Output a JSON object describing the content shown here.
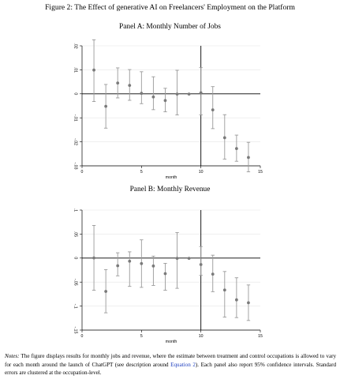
{
  "figure": {
    "title": "Figure 2: The Effect of generative AI on Freelancers' Employment on the Platform"
  },
  "notes": {
    "label": "Notes:",
    "text_before_link": " The figure displays results for monthly jobs and revenue, where the estimate between treatment and control occupations is allowed to vary for each month around the launch of ChatGPT (see description around ",
    "link_text": "Equation 2",
    "text_after_link": "). Each panel also report 95% confidence intervals. Standard errors are clustered at the occupation-level."
  },
  "style": {
    "marker_color": "#7a7a7a",
    "ci_color": "#9a9a9a",
    "grid_color": "#e6e6e6",
    "line_color": "#000000",
    "link_color": "#1f3fbf"
  },
  "chart_data": [
    {
      "type": "scatter",
      "subtype": "event-study with 95% CI",
      "title": "Panel A: Monthly Number of Jobs",
      "xlabel": "month",
      "ylabel": "",
      "xlim": [
        0,
        15
      ],
      "ylim": [
        -0.03,
        0.02
      ],
      "xticks": [
        0,
        5,
        10,
        15
      ],
      "xtick_labels": [
        "0",
        "5",
        "10",
        "15"
      ],
      "yticks": [
        -0.03,
        -0.02,
        -0.01,
        0,
        0.01,
        0.02
      ],
      "ytick_labels": [
        "-.03",
        "-.02",
        "-.01",
        "0",
        ".01",
        ".02"
      ],
      "grid": true,
      "reference_lines": {
        "horizontal_y": 0,
        "vertical_x": 10
      },
      "points": [
        {
          "x": 1,
          "y": 0.0099,
          "lo": -0.0032,
          "hi": 0.0225
        },
        {
          "x": 2,
          "y": -0.0052,
          "lo": -0.0143,
          "hi": 0.0039
        },
        {
          "x": 3,
          "y": 0.0045,
          "lo": -0.0017,
          "hi": 0.0108
        },
        {
          "x": 4,
          "y": 0.0035,
          "lo": -0.0027,
          "hi": 0.0101
        },
        {
          "x": 5,
          "y": 0.0002,
          "lo": -0.0041,
          "hi": 0.0092
        },
        {
          "x": 6,
          "y": -0.0013,
          "lo": -0.0066,
          "hi": 0.0071
        },
        {
          "x": 7,
          "y": -0.0028,
          "lo": -0.0075,
          "hi": 0.0023
        },
        {
          "x": 8,
          "y": -0.0001,
          "lo": -0.0088,
          "hi": 0.0098
        },
        {
          "x": 9,
          "y": -0.0001,
          "lo": null,
          "hi": null
        },
        {
          "x": 10,
          "y": 0.0004,
          "lo": -0.0088,
          "hi": 0.0109
        },
        {
          "x": 11,
          "y": -0.0067,
          "lo": -0.0145,
          "hi": 0.003
        },
        {
          "x": 12,
          "y": -0.0183,
          "lo": -0.0272,
          "hi": -0.0087
        },
        {
          "x": 13,
          "y": -0.0228,
          "lo": -0.0281,
          "hi": -0.0172
        },
        {
          "x": 14,
          "y": -0.0265,
          "lo": -0.0325,
          "hi": -0.0202
        }
      ]
    },
    {
      "type": "scatter",
      "subtype": "event-study with 95% CI",
      "title": "Panel B: Monthly Revenue",
      "xlabel": "month",
      "ylabel": "",
      "xlim": [
        0,
        15
      ],
      "ylim": [
        -0.15,
        0.1
      ],
      "xticks": [
        0,
        5,
        10,
        15
      ],
      "xtick_labels": [
        "0",
        "5",
        "10",
        "15"
      ],
      "yticks": [
        -0.15,
        -0.1,
        -0.05,
        0,
        0.05,
        0.1
      ],
      "ytick_labels": [
        "-.15",
        "-.1",
        "-.05",
        "0",
        ".05",
        ".1"
      ],
      "grid": true,
      "reference_lines": {
        "horizontal_y": 0,
        "vertical_x": 10
      },
      "points": [
        {
          "x": 1,
          "y": 0.0003,
          "lo": -0.067,
          "hi": 0.068
        },
        {
          "x": 2,
          "y": -0.0695,
          "lo": -0.114,
          "hi": -0.024
        },
        {
          "x": 3,
          "y": -0.016,
          "lo": -0.037,
          "hi": 0.011
        },
        {
          "x": 4,
          "y": -0.0065,
          "lo": -0.059,
          "hi": 0.013
        },
        {
          "x": 5,
          "y": -0.0115,
          "lo": -0.061,
          "hi": 0.038
        },
        {
          "x": 6,
          "y": -0.0165,
          "lo": -0.057,
          "hi": 0.004
        },
        {
          "x": 7,
          "y": -0.0325,
          "lo": -0.067,
          "hi": -0.011
        },
        {
          "x": 8,
          "y": -0.0005,
          "lo": -0.063,
          "hi": 0.053
        },
        {
          "x": 9,
          "y": -0.0005,
          "lo": null,
          "hi": null
        },
        {
          "x": 10,
          "y": -0.0135,
          "lo": -0.036,
          "hi": 0.024
        },
        {
          "x": 11,
          "y": -0.0335,
          "lo": -0.07,
          "hi": 0.006
        },
        {
          "x": 12,
          "y": -0.0665,
          "lo": -0.123,
          "hi": -0.028
        },
        {
          "x": 13,
          "y": -0.087,
          "lo": -0.124,
          "hi": -0.041
        },
        {
          "x": 14,
          "y": -0.093,
          "lo": -0.13,
          "hi": -0.056
        }
      ]
    }
  ]
}
